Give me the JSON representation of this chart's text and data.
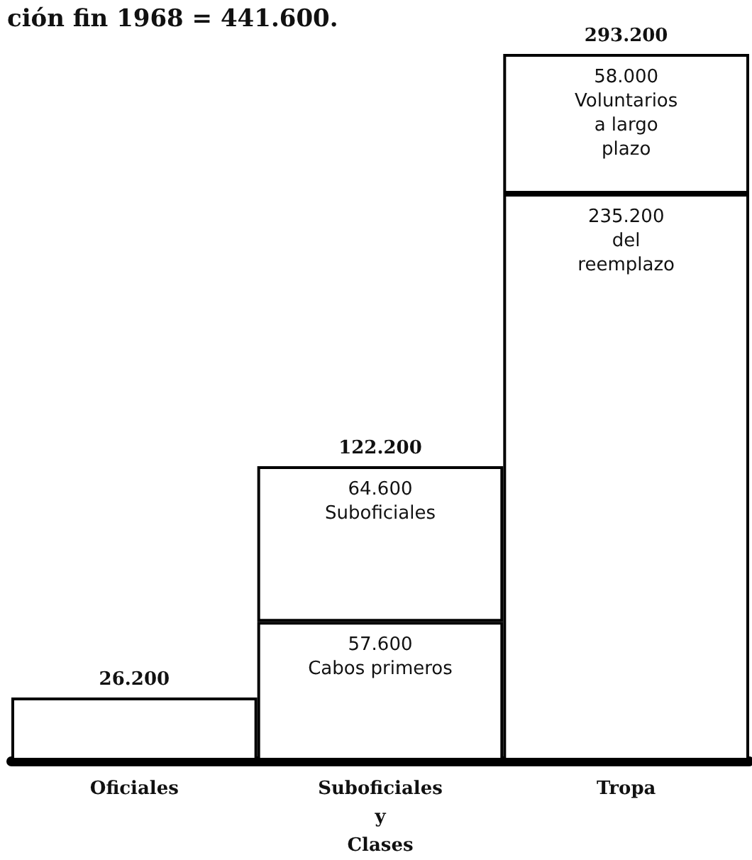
{
  "chart_data": {
    "type": "bar",
    "title": "ción fin 1968 = 441.600.",
    "stacked": true,
    "categories": [
      "Oficiales",
      "Suboficiales\ny\nClases",
      "Tropa"
    ],
    "series": [
      {
        "color": "#ffffff",
        "values": [
          26200,
          57600,
          235200
        ],
        "value_labels": [
          null,
          "57.600\nCabos primeros",
          "235.200\ndel\nreemplazo"
        ]
      },
      {
        "color": "#ffffff",
        "values": [
          null,
          64600,
          58000
        ],
        "value_labels": [
          null,
          "64.600\nSuboficiales",
          "58.000\nVoluntarios\na largo\nplazo"
        ]
      }
    ],
    "totals": [
      "26.200",
      "122.200",
      "293.200"
    ]
  }
}
